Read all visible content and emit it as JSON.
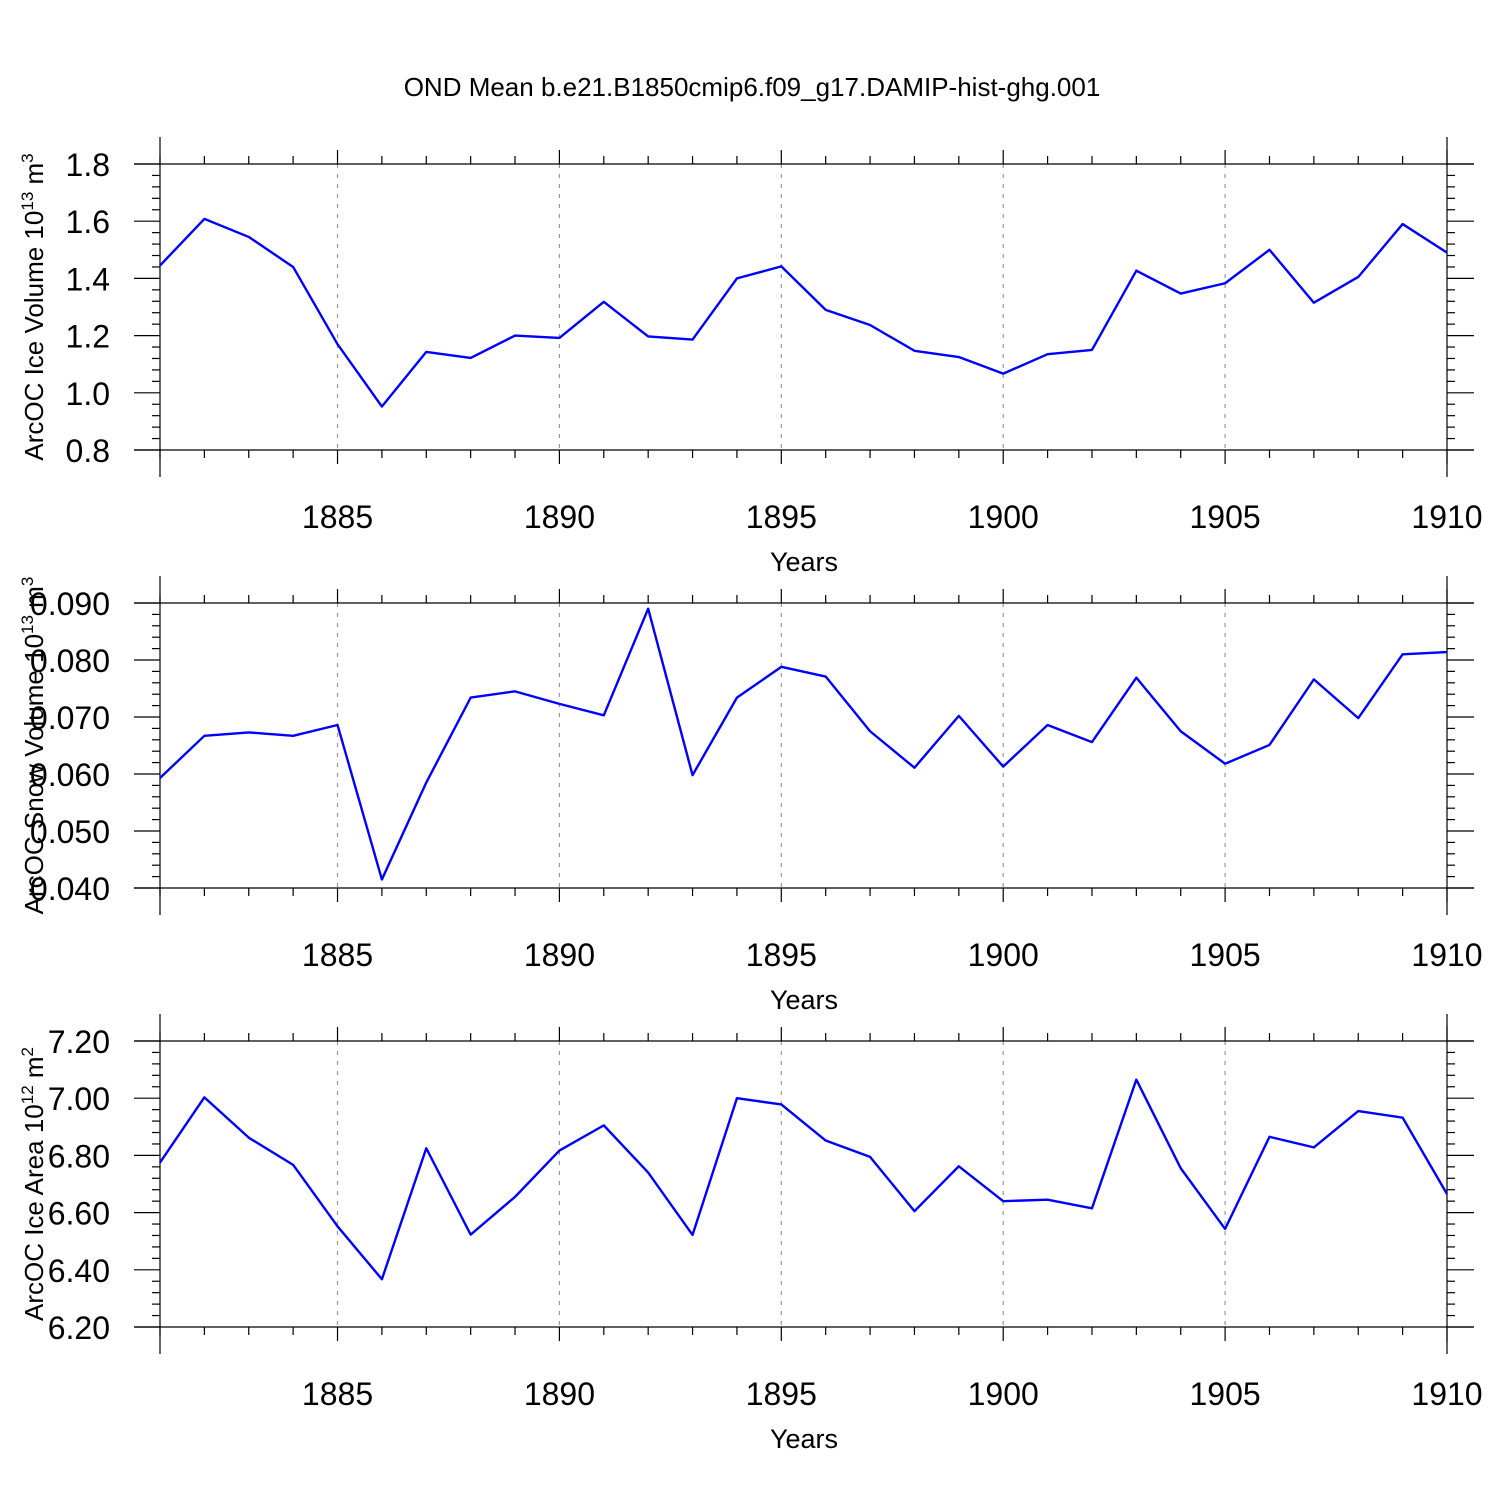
{
  "title": "OND Mean b.e21.B1850cmip6.f09_g17.DAMIP-hist-ghg.001",
  "colors": {
    "series": "#0000ff",
    "grid": "#999999",
    "axis": "#000000"
  },
  "chart_data": [
    {
      "type": "line",
      "ylabel": "ArcOC Ice Volume 10",
      "ylabel_exp": "13",
      "ylabel_unit": " m",
      "ylabel_unit_exp": "3",
      "xlabel": "Years",
      "xlim": [
        1881,
        1910
      ],
      "ylim": [
        0.8,
        1.8
      ],
      "xticks": [
        1885,
        1890,
        1895,
        1900,
        1905,
        1910
      ],
      "yticks": [
        "0.8",
        "1.0",
        "1.2",
        "1.4",
        "1.6",
        "1.8"
      ],
      "ytick_values": [
        0.8,
        1.0,
        1.2,
        1.4,
        1.6,
        1.8
      ],
      "grid_x": [
        1885,
        1890,
        1895,
        1900,
        1905
      ],
      "x": [
        1881,
        1882,
        1883,
        1884,
        1885,
        1886,
        1887,
        1888,
        1889,
        1890,
        1891,
        1892,
        1893,
        1894,
        1895,
        1896,
        1897,
        1898,
        1899,
        1900,
        1901,
        1902,
        1903,
        1904,
        1905,
        1906,
        1907,
        1908,
        1909,
        1910
      ],
      "series": [
        {
          "values": [
            1.445,
            1.608,
            1.545,
            1.44,
            1.17,
            0.952,
            1.143,
            1.122,
            1.2,
            1.192,
            1.318,
            1.197,
            1.186,
            1.4,
            1.442,
            1.29,
            1.237,
            1.147,
            1.125,
            1.067,
            1.135,
            1.15,
            1.427,
            1.347,
            1.383,
            1.5,
            1.315,
            1.405,
            1.59,
            1.49
          ]
        }
      ]
    },
    {
      "type": "line",
      "ylabel": "ArcOC Snow Volume 10",
      "ylabel_exp": "13",
      "ylabel_unit": " m",
      "ylabel_unit_exp": "3",
      "xlabel": "Years",
      "xlim": [
        1881,
        1910
      ],
      "ylim": [
        0.04,
        0.09
      ],
      "xticks": [
        1885,
        1890,
        1895,
        1900,
        1905,
        1910
      ],
      "yticks": [
        "0.040",
        "0.050",
        "0.060",
        "0.070",
        "0.080",
        "0.090"
      ],
      "ytick_values": [
        0.04,
        0.05,
        0.06,
        0.07,
        0.08,
        0.09
      ],
      "grid_x": [
        1885,
        1890,
        1895,
        1900,
        1905
      ],
      "x": [
        1881,
        1882,
        1883,
        1884,
        1885,
        1886,
        1887,
        1888,
        1889,
        1890,
        1891,
        1892,
        1893,
        1894,
        1895,
        1896,
        1897,
        1898,
        1899,
        1900,
        1901,
        1902,
        1903,
        1904,
        1905,
        1906,
        1907,
        1908,
        1909,
        1910
      ],
      "series": [
        {
          "values": [
            0.0593,
            0.0667,
            0.0673,
            0.0667,
            0.0686,
            0.0415,
            0.0585,
            0.0734,
            0.0745,
            0.0723,
            0.0703,
            0.089,
            0.0598,
            0.0734,
            0.0788,
            0.0771,
            0.0675,
            0.0611,
            0.0702,
            0.0613,
            0.0686,
            0.0656,
            0.0769,
            0.0675,
            0.0618,
            0.0651,
            0.0766,
            0.0698,
            0.081,
            0.0814
          ]
        }
      ]
    },
    {
      "type": "line",
      "ylabel": "ArcOC Ice Area 10",
      "ylabel_exp": "12",
      "ylabel_unit": " m",
      "ylabel_unit_exp": "2",
      "xlabel": "Years",
      "xlim": [
        1881,
        1910
      ],
      "ylim": [
        6.2,
        7.2
      ],
      "xticks": [
        1885,
        1890,
        1895,
        1900,
        1905,
        1910
      ],
      "yticks": [
        "6.20",
        "6.40",
        "6.60",
        "6.80",
        "7.00",
        "7.20"
      ],
      "ytick_values": [
        6.2,
        6.4,
        6.6,
        6.8,
        7.0,
        7.2
      ],
      "grid_x": [
        1885,
        1890,
        1895,
        1900,
        1905
      ],
      "x": [
        1881,
        1882,
        1883,
        1884,
        1885,
        1886,
        1887,
        1888,
        1889,
        1890,
        1891,
        1892,
        1893,
        1894,
        1895,
        1896,
        1897,
        1898,
        1899,
        1900,
        1901,
        1902,
        1903,
        1904,
        1905,
        1906,
        1907,
        1908,
        1909,
        1910
      ],
      "series": [
        {
          "values": [
            6.775,
            7.003,
            6.862,
            6.767,
            6.552,
            6.367,
            6.825,
            6.523,
            6.655,
            6.817,
            6.905,
            6.74,
            6.522,
            7.0,
            6.978,
            6.852,
            6.795,
            6.605,
            6.762,
            6.64,
            6.645,
            6.615,
            7.065,
            6.755,
            6.543,
            6.865,
            6.828,
            6.955,
            6.932,
            6.665
          ]
        }
      ]
    }
  ]
}
